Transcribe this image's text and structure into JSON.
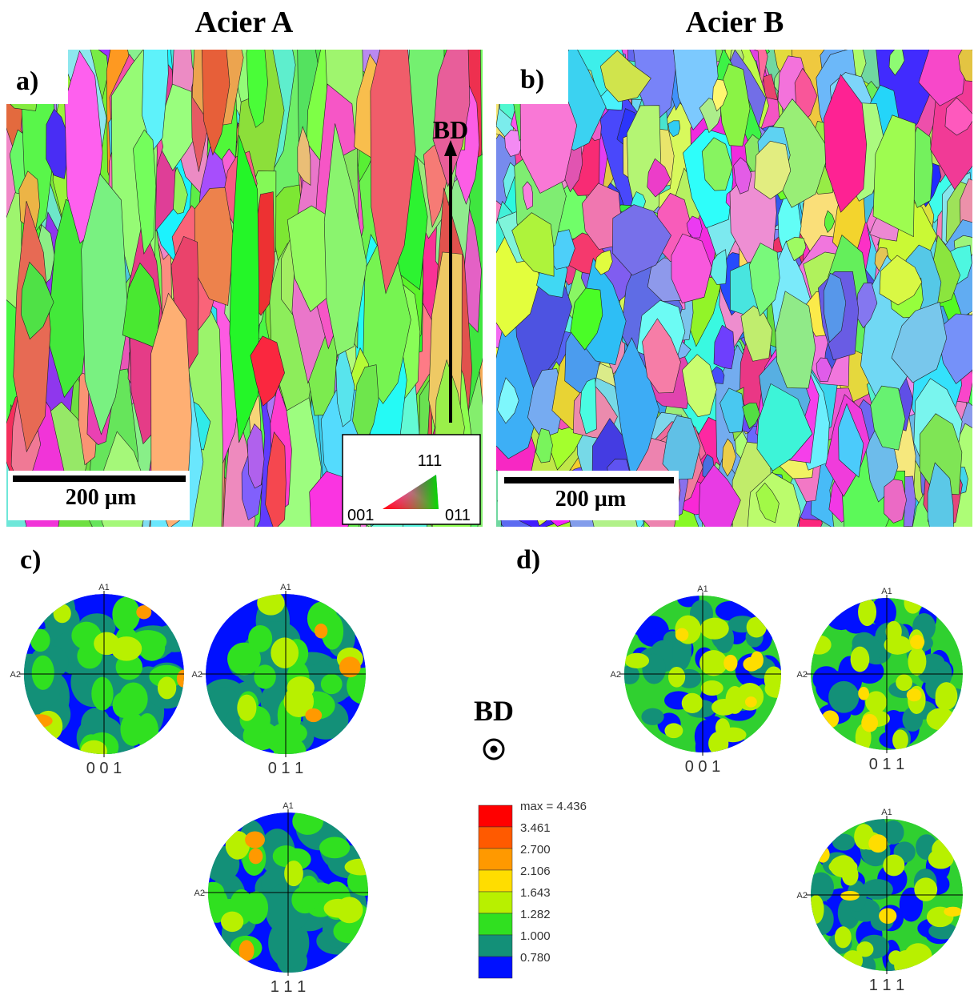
{
  "headers": {
    "left": "Acier A",
    "right": "Acier B"
  },
  "panels": {
    "a": {
      "label": "a)",
      "scale_bar": "200 µm",
      "direction": "BD",
      "ipf_key": {
        "top": "111",
        "left": "001",
        "right": "011"
      }
    },
    "b": {
      "label": "b)",
      "scale_bar": "200 µm"
    },
    "c": {
      "label": "c)",
      "pole_figures": [
        {
          "name": "0 0 1",
          "axis1": "A1",
          "axis2": "A2"
        },
        {
          "name": "0 1 1",
          "axis1": "A1",
          "axis2": "A2"
        },
        {
          "name": "1 1 1",
          "axis1": "A1",
          "axis2": "A2"
        }
      ]
    },
    "d": {
      "label": "d)",
      "pole_figures": [
        {
          "name": "0 0 1",
          "axis1": "A1",
          "axis2": "A2"
        },
        {
          "name": "0 1 1",
          "axis1": "A1",
          "axis2": "A2"
        },
        {
          "name": "1 1 1",
          "axis1": "A1",
          "axis2": "A2"
        }
      ]
    }
  },
  "center": {
    "direction": "BD"
  },
  "legend": {
    "labels": [
      "max = 4.436",
      "3.461",
      "2.700",
      "2.106",
      "1.643",
      "1.282",
      "1.000",
      "0.780"
    ]
  }
}
